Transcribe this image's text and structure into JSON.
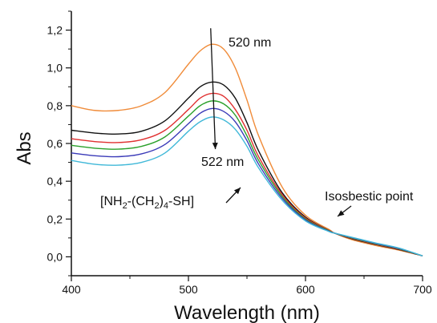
{
  "chart_data": {
    "type": "line",
    "xlabel": "Wavelength (nm)",
    "ylabel": "Abs",
    "xlim": [
      400,
      700
    ],
    "ylim": [
      -0.1,
      1.3
    ],
    "x_ticks": [
      400,
      500,
      600,
      700
    ],
    "x_tick_labels": [
      "400",
      "500",
      "600",
      "700"
    ],
    "y_ticks": [
      0.0,
      0.2,
      0.4,
      0.6,
      0.8,
      1.0,
      1.2
    ],
    "y_tick_labels": [
      "0,0",
      "0,2",
      "0,4",
      "0,6",
      "0,8",
      "1,0",
      "1,2"
    ],
    "grid": false,
    "series": [
      {
        "color": "#f08c3a",
        "x": [
          400,
          420,
          440,
          460,
          480,
          500,
          510,
          520,
          530,
          540,
          550,
          560,
          580,
          600,
          620,
          625,
          640,
          660,
          680,
          700
        ],
        "y": [
          0.8,
          0.775,
          0.775,
          0.8,
          0.87,
          1.02,
          1.09,
          1.125,
          1.1,
          1.0,
          0.83,
          0.64,
          0.37,
          0.22,
          0.145,
          0.125,
          0.09,
          0.06,
          0.035,
          0.005
        ]
      },
      {
        "color": "#111111",
        "x": [
          400,
          420,
          440,
          460,
          480,
          500,
          510,
          520,
          530,
          540,
          550,
          560,
          580,
          600,
          620,
          625,
          640,
          660,
          680,
          700
        ],
        "y": [
          0.67,
          0.655,
          0.65,
          0.665,
          0.72,
          0.84,
          0.9,
          0.925,
          0.91,
          0.84,
          0.71,
          0.56,
          0.34,
          0.21,
          0.14,
          0.125,
          0.095,
          0.065,
          0.038,
          0.005
        ]
      },
      {
        "color": "#e03030",
        "x": [
          400,
          420,
          440,
          460,
          480,
          500,
          510,
          520,
          530,
          540,
          550,
          560,
          580,
          600,
          620,
          625,
          640,
          660,
          680,
          700
        ],
        "y": [
          0.625,
          0.61,
          0.605,
          0.62,
          0.67,
          0.78,
          0.84,
          0.865,
          0.85,
          0.78,
          0.67,
          0.53,
          0.33,
          0.205,
          0.14,
          0.125,
          0.097,
          0.067,
          0.04,
          0.005
        ]
      },
      {
        "color": "#2aa02a",
        "x": [
          400,
          420,
          440,
          460,
          480,
          500,
          510,
          520,
          530,
          540,
          550,
          560,
          580,
          600,
          620,
          625,
          640,
          660,
          680,
          700
        ],
        "y": [
          0.59,
          0.575,
          0.57,
          0.585,
          0.635,
          0.745,
          0.8,
          0.825,
          0.81,
          0.75,
          0.64,
          0.51,
          0.32,
          0.2,
          0.138,
          0.125,
          0.099,
          0.069,
          0.042,
          0.005
        ]
      },
      {
        "color": "#3a3ab8",
        "x": [
          400,
          420,
          440,
          460,
          480,
          500,
          510,
          520,
          530,
          540,
          550,
          560,
          580,
          600,
          620,
          625,
          640,
          660,
          680,
          700
        ],
        "y": [
          0.55,
          0.535,
          0.53,
          0.545,
          0.595,
          0.705,
          0.76,
          0.785,
          0.77,
          0.715,
          0.615,
          0.49,
          0.31,
          0.195,
          0.136,
          0.125,
          0.101,
          0.071,
          0.044,
          0.005
        ]
      },
      {
        "color": "#40b8d8",
        "x": [
          400,
          420,
          440,
          460,
          480,
          500,
          510,
          520,
          530,
          540,
          550,
          560,
          580,
          600,
          620,
          625,
          640,
          660,
          680,
          700
        ],
        "y": [
          0.51,
          0.49,
          0.485,
          0.5,
          0.55,
          0.665,
          0.715,
          0.74,
          0.725,
          0.675,
          0.585,
          0.47,
          0.3,
          0.19,
          0.134,
          0.125,
          0.103,
          0.073,
          0.046,
          0.005
        ]
      }
    ],
    "annotations": {
      "peak_top": "520 nm",
      "peak_bottom": "522 nm",
      "isosbestic": "Isosbestic point",
      "reagent_main": "[NH",
      "reagent_sub1": "2",
      "reagent_mid": "-(CH",
      "reagent_sub2": "2",
      "reagent_close": ")",
      "reagent_sub3": "4",
      "reagent_end": "-SH]"
    }
  }
}
